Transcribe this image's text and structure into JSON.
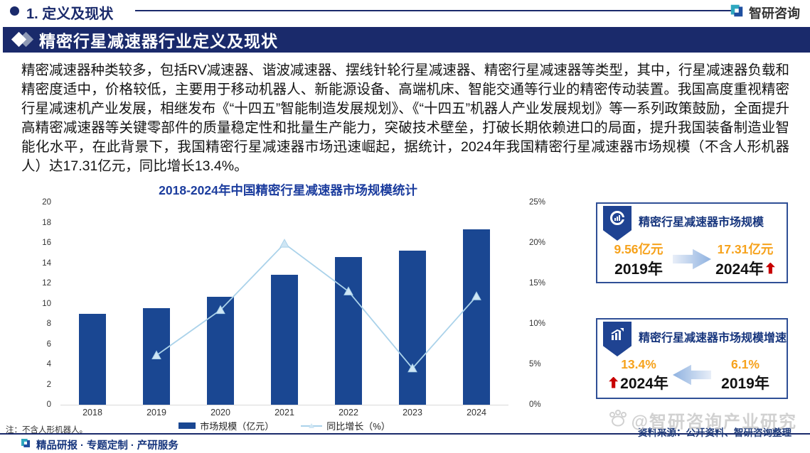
{
  "header": {
    "section_label": "1. 定义及现状",
    "brand_name": "智研咨询"
  },
  "banner": {
    "title": "精密行星减速器行业定义及现状"
  },
  "intro_paragraph": "精密减速器种类较多，包括RV减速器、谐波减速器、摆线针轮行星减速器、精密行星减速器等类型，其中，行星减速器负载和精密度适中，价格较低，主要用于移动机器人、新能源设备、高端机床、智能交通等行业的精密传动装置。我国高度重视精密行星减速机产业发展，相继发布《“十四五”智能制造发展规划》、《“十四五”机器人产业发展规划》等一系列政策鼓励，全面提升高精密减速器等关键零部件的质量稳定性和批量生产能力，突破技术壁垒，打破长期依赖进口的局面，提升我国装备制造业智能化水平，在此背景下，我国精密行星减速器市场迅速崛起，据统计，2024年我国精密行星减速器市场规模（不含人形机器人）达17.31亿元，同比增长13.4%。",
  "chart_data": {
    "type": "bar+line",
    "title": "2018-2024年中国精密行星减速器市场规模统计",
    "categories": [
      "2018",
      "2019",
      "2020",
      "2021",
      "2022",
      "2023",
      "2024"
    ],
    "series": [
      {
        "name": "市场规模（亿元）",
        "type": "bar",
        "axis": "left",
        "values": [
          9.0,
          9.56,
          10.68,
          12.81,
          14.6,
          15.26,
          17.31
        ]
      },
      {
        "name": "同比增长（%）",
        "type": "line",
        "axis": "right",
        "values": [
          null,
          6.1,
          11.7,
          19.9,
          14.0,
          4.5,
          13.4
        ]
      }
    ],
    "left_axis": {
      "min": 0,
      "max": 20,
      "step": 2
    },
    "right_axis": {
      "min": 0,
      "max": 25,
      "step": 5,
      "suffix": "%"
    },
    "grid": false,
    "legend_position": "bottom",
    "note": "注：不含人形机器人。",
    "colors": {
      "bar": "#1a4792",
      "line": "#aad2ea",
      "marker_fill": "#cfe6f4"
    }
  },
  "cards": [
    {
      "title": "精密行星减速器市场规模",
      "left_value": "9.56亿元",
      "left_label": "2019年",
      "right_value": "17.31亿元",
      "right_label": "2024年",
      "arrow_direction": "right"
    },
    {
      "title": "精密行星减速器市场规模增速",
      "left_value": "13.4%",
      "left_label": "2024年",
      "right_value": "6.1%",
      "right_label": "2019年",
      "arrow_direction": "left"
    }
  ],
  "source_line": "资料来源：公开资料、智研咨询整理",
  "watermark_text": "@智研咨询产业研究",
  "footer": {
    "tagline": "精品研报 · 专题定制 · 产研服务"
  },
  "colors": {
    "navy": "#1a2a6b",
    "chart_title": "#1c3d9e",
    "bar": "#1a4792",
    "line": "#aad2ea",
    "accent_orange": "#f6a21c",
    "accent_red": "#c80000",
    "watermark_gray": "#c9c9c9"
  }
}
